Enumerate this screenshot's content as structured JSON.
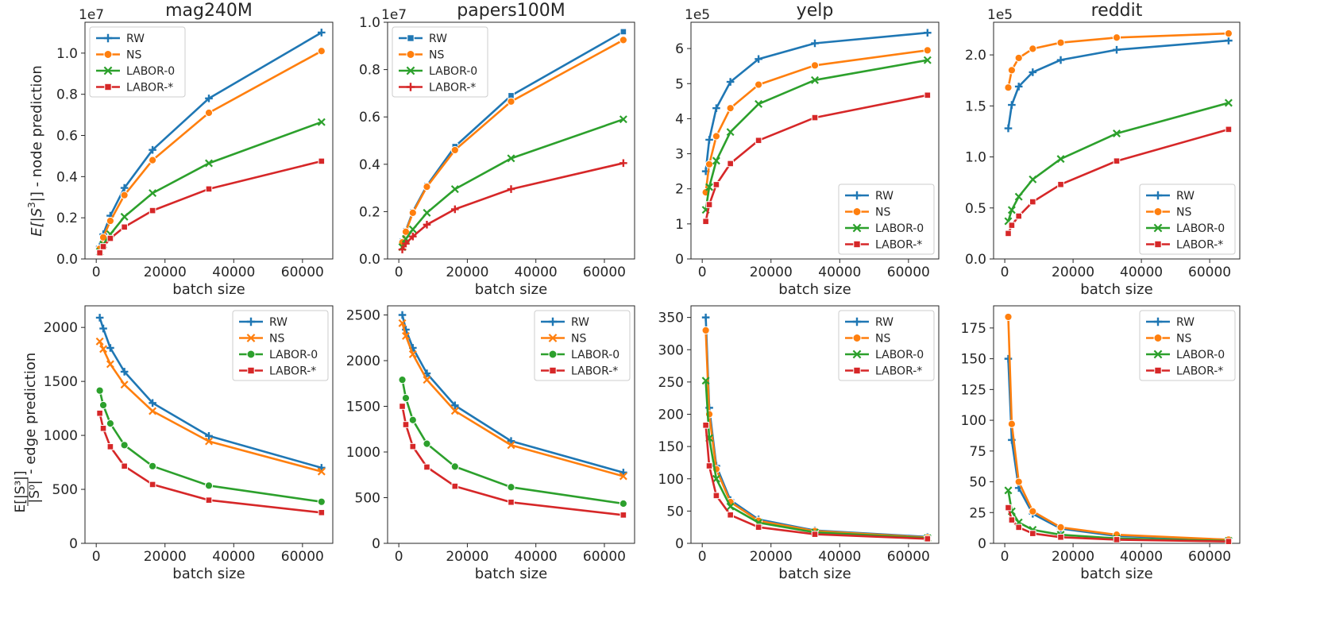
{
  "colors": {
    "RW": "#1f77b4",
    "NS": "#ff7f0e",
    "LABOR-0": "#2ca02c",
    "LABOR-*": "#d62728"
  },
  "row_labels": {
    "top": {
      "prefix": "E[|S",
      "sup": "3",
      "suffix": "|] - node prediction"
    },
    "bottom": {
      "frac_num": "E[|S³|]",
      "frac_den": "|S⁰|",
      "suffix": "- edge prediction"
    }
  },
  "chart_data": [
    {
      "type": "line",
      "title": "mag240M",
      "xlabel": "batch size",
      "ylabel": "E[|S3|] - node prediction",
      "exponent": "1e7",
      "x": [
        1024,
        2048,
        4096,
        8192,
        16384,
        32768,
        65536
      ],
      "xlim": [
        -3276.8,
        68812.8
      ],
      "ylim": [
        0,
        1.15
      ],
      "xticks": [
        0,
        20000,
        40000,
        60000
      ],
      "yticks": [
        0.0,
        0.2,
        0.4,
        0.6,
        0.8,
        1.0
      ],
      "ytick_labels": [
        "0.0",
        "0.2",
        "0.4",
        "0.6",
        "0.8",
        "1.0"
      ],
      "legend": "upper-left",
      "series": [
        {
          "name": "RW",
          "marker": "plus",
          "values": [
            0.06,
            0.12,
            0.21,
            0.345,
            0.53,
            0.78,
            1.1
          ]
        },
        {
          "name": "NS",
          "marker": "circle",
          "values": [
            0.05,
            0.105,
            0.185,
            0.31,
            0.48,
            0.71,
            1.01
          ]
        },
        {
          "name": "LABOR-0",
          "marker": "x",
          "values": [
            0.035,
            0.07,
            0.12,
            0.205,
            0.32,
            0.465,
            0.665
          ]
        },
        {
          "name": "LABOR-*",
          "marker": "square",
          "values": [
            0.03,
            0.06,
            0.1,
            0.155,
            0.235,
            0.34,
            0.475
          ]
        }
      ]
    },
    {
      "type": "line",
      "title": "papers100M",
      "xlabel": "batch size",
      "ylabel": "",
      "exponent": "1e7",
      "x": [
        1024,
        2048,
        4096,
        8192,
        16384,
        32768,
        65536
      ],
      "xlim": [
        -3276.8,
        68812.8
      ],
      "ylim": [
        0,
        1.0
      ],
      "xticks": [
        0,
        20000,
        40000,
        60000
      ],
      "yticks": [
        0.0,
        0.2,
        0.4,
        0.6,
        0.8,
        1.0
      ],
      "ytick_labels": [
        "0.0",
        "0.2",
        "0.4",
        "0.6",
        "0.8",
        "1.0"
      ],
      "legend": "upper-left",
      "series": [
        {
          "name": "RW",
          "marker": "square",
          "values": [
            0.075,
            0.12,
            0.2,
            0.31,
            0.475,
            0.69,
            0.96
          ]
        },
        {
          "name": "NS",
          "marker": "circle",
          "values": [
            0.07,
            0.115,
            0.195,
            0.305,
            0.46,
            0.665,
            0.925
          ]
        },
        {
          "name": "LABOR-0",
          "marker": "x",
          "values": [
            0.05,
            0.085,
            0.125,
            0.195,
            0.295,
            0.425,
            0.59
          ]
        },
        {
          "name": "LABOR-*",
          "marker": "plus",
          "values": [
            0.04,
            0.065,
            0.095,
            0.145,
            0.21,
            0.295,
            0.405
          ]
        }
      ]
    },
    {
      "type": "line",
      "title": "yelp",
      "xlabel": "batch size",
      "ylabel": "",
      "exponent": "1e5",
      "x": [
        1024,
        2048,
        4096,
        8192,
        16384,
        32768,
        65536
      ],
      "xlim": [
        -3276.8,
        68812.8
      ],
      "ylim": [
        0,
        6.75
      ],
      "xticks": [
        0,
        20000,
        40000,
        60000
      ],
      "yticks": [
        0,
        1,
        2,
        3,
        4,
        5,
        6
      ],
      "ytick_labels": [
        "0",
        "1",
        "2",
        "3",
        "4",
        "5",
        "6"
      ],
      "legend": "lower-right",
      "series": [
        {
          "name": "RW",
          "marker": "plus",
          "values": [
            2.5,
            3.4,
            4.3,
            5.05,
            5.7,
            6.15,
            6.45
          ]
        },
        {
          "name": "NS",
          "marker": "circle",
          "values": [
            1.9,
            2.7,
            3.5,
            4.3,
            4.97,
            5.52,
            5.95
          ]
        },
        {
          "name": "LABOR-0",
          "marker": "x",
          "values": [
            1.4,
            2.05,
            2.8,
            3.62,
            4.42,
            5.1,
            5.67
          ]
        },
        {
          "name": "LABOR-*",
          "marker": "square",
          "values": [
            1.07,
            1.55,
            2.12,
            2.72,
            3.38,
            4.03,
            4.67
          ]
        }
      ]
    },
    {
      "type": "line",
      "title": "reddit",
      "xlabel": "batch size",
      "ylabel": "",
      "exponent": "1e5",
      "x": [
        1024,
        2048,
        4096,
        8192,
        16384,
        32768,
        65536
      ],
      "xlim": [
        -3276.8,
        68812.8
      ],
      "ylim": [
        0,
        2.32
      ],
      "xticks": [
        0,
        20000,
        40000,
        60000
      ],
      "yticks": [
        0.0,
        0.5,
        1.0,
        1.5,
        2.0
      ],
      "ytick_labels": [
        "0.0",
        "0.5",
        "1.0",
        "1.5",
        "2.0"
      ],
      "legend": "lower-right",
      "series": [
        {
          "name": "RW",
          "marker": "plus",
          "values": [
            1.28,
            1.51,
            1.69,
            1.83,
            1.95,
            2.05,
            2.14
          ]
        },
        {
          "name": "NS",
          "marker": "circle",
          "values": [
            1.68,
            1.85,
            1.97,
            2.06,
            2.12,
            2.17,
            2.21
          ]
        },
        {
          "name": "LABOR-0",
          "marker": "x",
          "values": [
            0.37,
            0.48,
            0.61,
            0.78,
            0.98,
            1.23,
            1.53
          ]
        },
        {
          "name": "LABOR-*",
          "marker": "square",
          "values": [
            0.25,
            0.33,
            0.42,
            0.56,
            0.73,
            0.96,
            1.27
          ]
        }
      ]
    },
    {
      "type": "line",
      "title": "",
      "xlabel": "batch size",
      "ylabel": "E[|S3|]/|S0| - edge prediction",
      "exponent": "",
      "x": [
        1024,
        2048,
        4096,
        8192,
        16384,
        32768,
        65536
      ],
      "xlim": [
        -3276.8,
        68812.8
      ],
      "ylim": [
        0,
        2200
      ],
      "xticks": [
        0,
        20000,
        40000,
        60000
      ],
      "yticks": [
        0,
        500,
        1000,
        1500,
        2000
      ],
      "ytick_labels": [
        "0",
        "500",
        "1000",
        "1500",
        "2000"
      ],
      "legend": "upper-right",
      "series": [
        {
          "name": "RW",
          "marker": "plus",
          "values": [
            2090,
            1990,
            1810,
            1590,
            1300,
            995,
            700
          ]
        },
        {
          "name": "NS",
          "marker": "x",
          "values": [
            1870,
            1800,
            1660,
            1470,
            1225,
            945,
            665
          ]
        },
        {
          "name": "LABOR-0",
          "marker": "circle",
          "values": [
            1415,
            1280,
            1110,
            910,
            715,
            535,
            385
          ]
        },
        {
          "name": "LABOR-*",
          "marker": "square",
          "values": [
            1205,
            1065,
            895,
            715,
            545,
            400,
            285
          ]
        }
      ]
    },
    {
      "type": "line",
      "title": "",
      "xlabel": "batch size",
      "ylabel": "",
      "exponent": "",
      "x": [
        1024,
        2048,
        4096,
        8192,
        16384,
        32768,
        65536
      ],
      "xlim": [
        -3276.8,
        68812.8
      ],
      "ylim": [
        0,
        2600
      ],
      "xticks": [
        0,
        20000,
        40000,
        60000
      ],
      "yticks": [
        0,
        500,
        1000,
        1500,
        2000,
        2500
      ],
      "ytick_labels": [
        "0",
        "500",
        "1000",
        "1500",
        "2000",
        "2500"
      ],
      "legend": "upper-right",
      "series": [
        {
          "name": "RW",
          "marker": "plus",
          "values": [
            2500,
            2340,
            2140,
            1860,
            1510,
            1120,
            775
          ]
        },
        {
          "name": "NS",
          "marker": "x",
          "values": [
            2410,
            2270,
            2070,
            1790,
            1450,
            1075,
            735
          ]
        },
        {
          "name": "LABOR-0",
          "marker": "circle",
          "values": [
            1790,
            1590,
            1350,
            1090,
            840,
            615,
            435
          ]
        },
        {
          "name": "LABOR-*",
          "marker": "square",
          "values": [
            1500,
            1300,
            1060,
            835,
            625,
            450,
            310
          ]
        }
      ]
    },
    {
      "type": "line",
      "title": "",
      "xlabel": "batch size",
      "ylabel": "",
      "exponent": "",
      "x": [
        1024,
        2048,
        4096,
        8192,
        16384,
        32768,
        65536
      ],
      "xlim": [
        -3276.8,
        68812.8
      ],
      "ylim": [
        0,
        368
      ],
      "xticks": [
        0,
        20000,
        40000,
        60000
      ],
      "yticks": [
        0,
        50,
        100,
        150,
        200,
        250,
        300,
        350
      ],
      "ytick_labels": [
        "0",
        "50",
        "100",
        "150",
        "200",
        "250",
        "300",
        "350"
      ],
      "legend": "upper-right",
      "series": [
        {
          "name": "RW",
          "marker": "plus",
          "values": [
            350,
            210,
            120,
            67,
            37,
            20,
            10
          ]
        },
        {
          "name": "NS",
          "marker": "circle",
          "values": [
            330,
            200,
            115,
            64,
            35,
            19,
            9
          ]
        },
        {
          "name": "LABOR-0",
          "marker": "x",
          "values": [
            252,
            163,
            100,
            57,
            32,
            17,
            8
          ]
        },
        {
          "name": "LABOR-*",
          "marker": "square",
          "values": [
            183,
            120,
            74,
            44,
            25,
            14,
            7
          ]
        }
      ]
    },
    {
      "type": "line",
      "title": "",
      "xlabel": "batch size",
      "ylabel": "",
      "exponent": "",
      "x": [
        1024,
        2048,
        4096,
        8192,
        16384,
        32768,
        65536
      ],
      "xlim": [
        -3276.8,
        68812.8
      ],
      "ylim": [
        0,
        193
      ],
      "xticks": [
        0,
        20000,
        40000,
        60000
      ],
      "yticks": [
        0,
        25,
        50,
        75,
        100,
        125,
        150,
        175
      ],
      "ytick_labels": [
        "0",
        "25",
        "50",
        "75",
        "100",
        "125",
        "150",
        "175"
      ],
      "legend": "upper-right",
      "series": [
        {
          "name": "RW",
          "marker": "plus",
          "values": [
            150,
            84,
            45,
            24,
            12,
            6,
            3
          ]
        },
        {
          "name": "NS",
          "marker": "circle",
          "values": [
            184,
            97,
            50,
            26,
            13,
            7,
            3
          ]
        },
        {
          "name": "LABOR-0",
          "marker": "x",
          "values": [
            43,
            26,
            17,
            11,
            7,
            4,
            2
          ]
        },
        {
          "name": "LABOR-*",
          "marker": "square",
          "values": [
            29,
            19,
            13,
            8,
            5,
            3,
            1.5
          ]
        }
      ]
    }
  ]
}
